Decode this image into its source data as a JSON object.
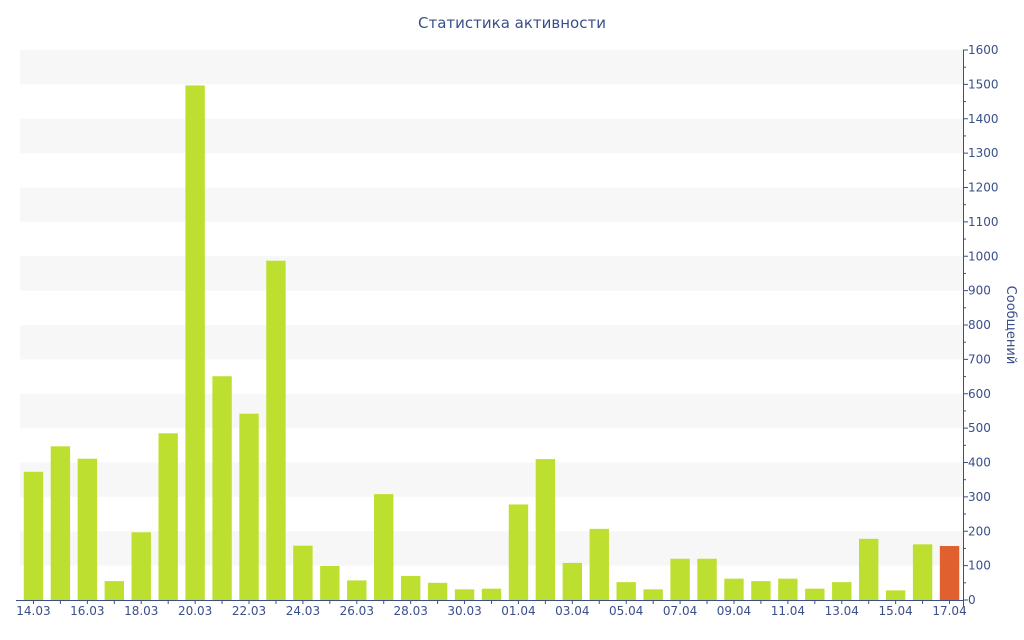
{
  "chart_data": {
    "type": "bar",
    "title": "Статистика активности",
    "ylabel": "Сообщений",
    "xlabel": "",
    "y_axis_side": "right",
    "ylim": [
      0,
      1600
    ],
    "yticks": [
      0,
      100,
      200,
      300,
      400,
      500,
      600,
      700,
      800,
      900,
      1000,
      1100,
      1200,
      1300,
      1400,
      1500,
      1600
    ],
    "categories": [
      "14.03",
      "15.03",
      "16.03",
      "17.03",
      "18.03",
      "19.03",
      "20.03",
      "21.03",
      "22.03",
      "23.03",
      "24.03",
      "25.03",
      "26.03",
      "27.03",
      "28.03",
      "29.03",
      "30.03",
      "31.03",
      "01.04",
      "02.04",
      "03.04",
      "04.04",
      "05.04",
      "06.04",
      "07.04",
      "08.04",
      "09.04",
      "10.04",
      "11.04",
      "12.04",
      "13.04",
      "14.04",
      "15.04",
      "16.04",
      "17.04"
    ],
    "xtick_labels": [
      "14.03",
      "16.03",
      "18.03",
      "20.03",
      "22.03",
      "24.03",
      "26.03",
      "28.03",
      "30.03",
      "01.04",
      "03.04",
      "05.04",
      "07.04",
      "09.04",
      "11.04",
      "13.04",
      "15.04",
      "17.04"
    ],
    "values": [
      373,
      447,
      411,
      55,
      197,
      485,
      1497,
      651,
      542,
      987,
      158,
      99,
      57,
      308,
      70,
      50,
      31,
      33,
      278,
      410,
      108,
      207,
      52,
      31,
      120,
      120,
      62,
      55,
      62,
      33,
      52,
      178,
      28,
      162,
      157
    ],
    "bar_color": "#bde030",
    "highlight_index": 34,
    "highlight_color": "#e06030",
    "axis_color": "#3a4f8a",
    "band_color": "#f7f7f7",
    "grid": "alternating horizontal bands"
  }
}
